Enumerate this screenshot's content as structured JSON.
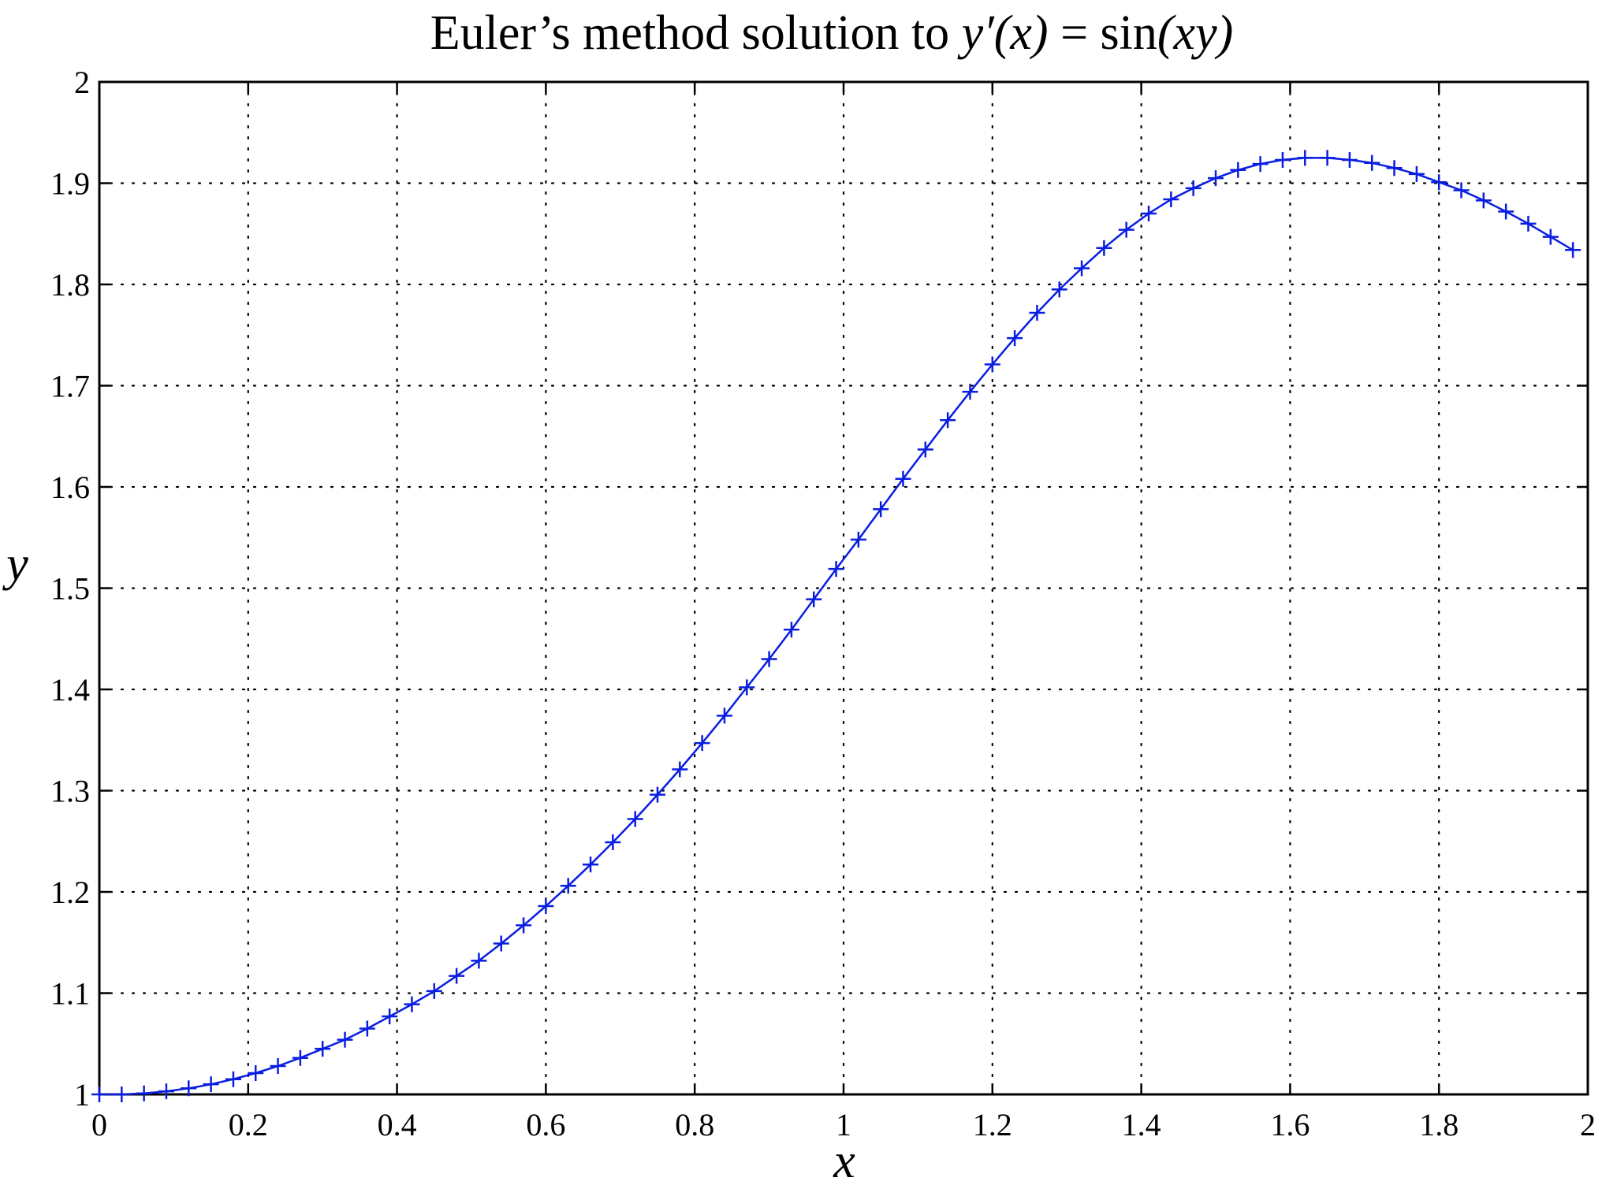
{
  "chart_data": {
    "type": "line",
    "title": {
      "text": "Euler’s method solution to ",
      "math_lhs": "y′(x)",
      "math_eq": " = ",
      "math_fn": "sin",
      "math_arg": "(xy)"
    },
    "xlabel": "x",
    "ylabel": "y",
    "xlim": [
      0,
      2
    ],
    "ylim": [
      1,
      2
    ],
    "x_ticks": [
      0,
      0.2,
      0.4,
      0.6,
      0.8,
      1,
      1.2,
      1.4,
      1.6,
      1.8,
      2
    ],
    "x_tick_labels": [
      "0",
      "0.2",
      "0.4",
      "0.6",
      "0.8",
      "1",
      "1.2",
      "1.4",
      "1.6",
      "1.8",
      "2"
    ],
    "y_ticks": [
      1,
      1.1,
      1.2,
      1.3,
      1.4,
      1.5,
      1.6,
      1.7,
      1.8,
      1.9,
      2
    ],
    "y_tick_labels": [
      "1",
      "1.1",
      "1.2",
      "1.3",
      "1.4",
      "1.5",
      "1.6",
      "1.7",
      "1.8",
      "1.9",
      "2"
    ],
    "grid": true,
    "grid_style": "dotted",
    "legend": "none",
    "colors": {
      "series": "#0a1ee0",
      "axes": "#000000",
      "grid": "#000000",
      "background": "#ffffff"
    },
    "series": [
      {
        "marker": "+",
        "line": "solid",
        "x": [
          0,
          0.03,
          0.06,
          0.09,
          0.12,
          0.15,
          0.18,
          0.21,
          0.24,
          0.27,
          0.3,
          0.33,
          0.36,
          0.39,
          0.42,
          0.45,
          0.48,
          0.51,
          0.54,
          0.57,
          0.6,
          0.63,
          0.66,
          0.69,
          0.72,
          0.75,
          0.78,
          0.81,
          0.84,
          0.87,
          0.9,
          0.93,
          0.96,
          0.99,
          1.02,
          1.05,
          1.08,
          1.11,
          1.14,
          1.17,
          1.2,
          1.23,
          1.26,
          1.29,
          1.32,
          1.35,
          1.38,
          1.41,
          1.44,
          1.47,
          1.5,
          1.53,
          1.56,
          1.59,
          1.62,
          1.65,
          1.68,
          1.71,
          1.74,
          1.77,
          1.8,
          1.83,
          1.86,
          1.89,
          1.92,
          1.95,
          1.98
        ],
        "y": [
          1.0,
          1.0,
          1.001,
          1.003,
          1.006,
          1.01,
          1.015,
          1.021,
          1.028,
          1.036,
          1.045,
          1.054,
          1.065,
          1.077,
          1.089,
          1.102,
          1.117,
          1.132,
          1.149,
          1.167,
          1.186,
          1.206,
          1.227,
          1.249,
          1.272,
          1.296,
          1.321,
          1.347,
          1.374,
          1.402,
          1.43,
          1.459,
          1.489,
          1.519,
          1.548,
          1.578,
          1.608,
          1.637,
          1.666,
          1.694,
          1.721,
          1.747,
          1.772,
          1.795,
          1.816,
          1.836,
          1.854,
          1.87,
          1.884,
          1.895,
          1.905,
          1.913,
          1.919,
          1.923,
          1.925,
          1.925,
          1.923,
          1.92,
          1.915,
          1.909,
          1.901,
          1.893,
          1.883,
          1.872,
          1.86,
          1.847,
          1.834
        ]
      }
    ]
  }
}
